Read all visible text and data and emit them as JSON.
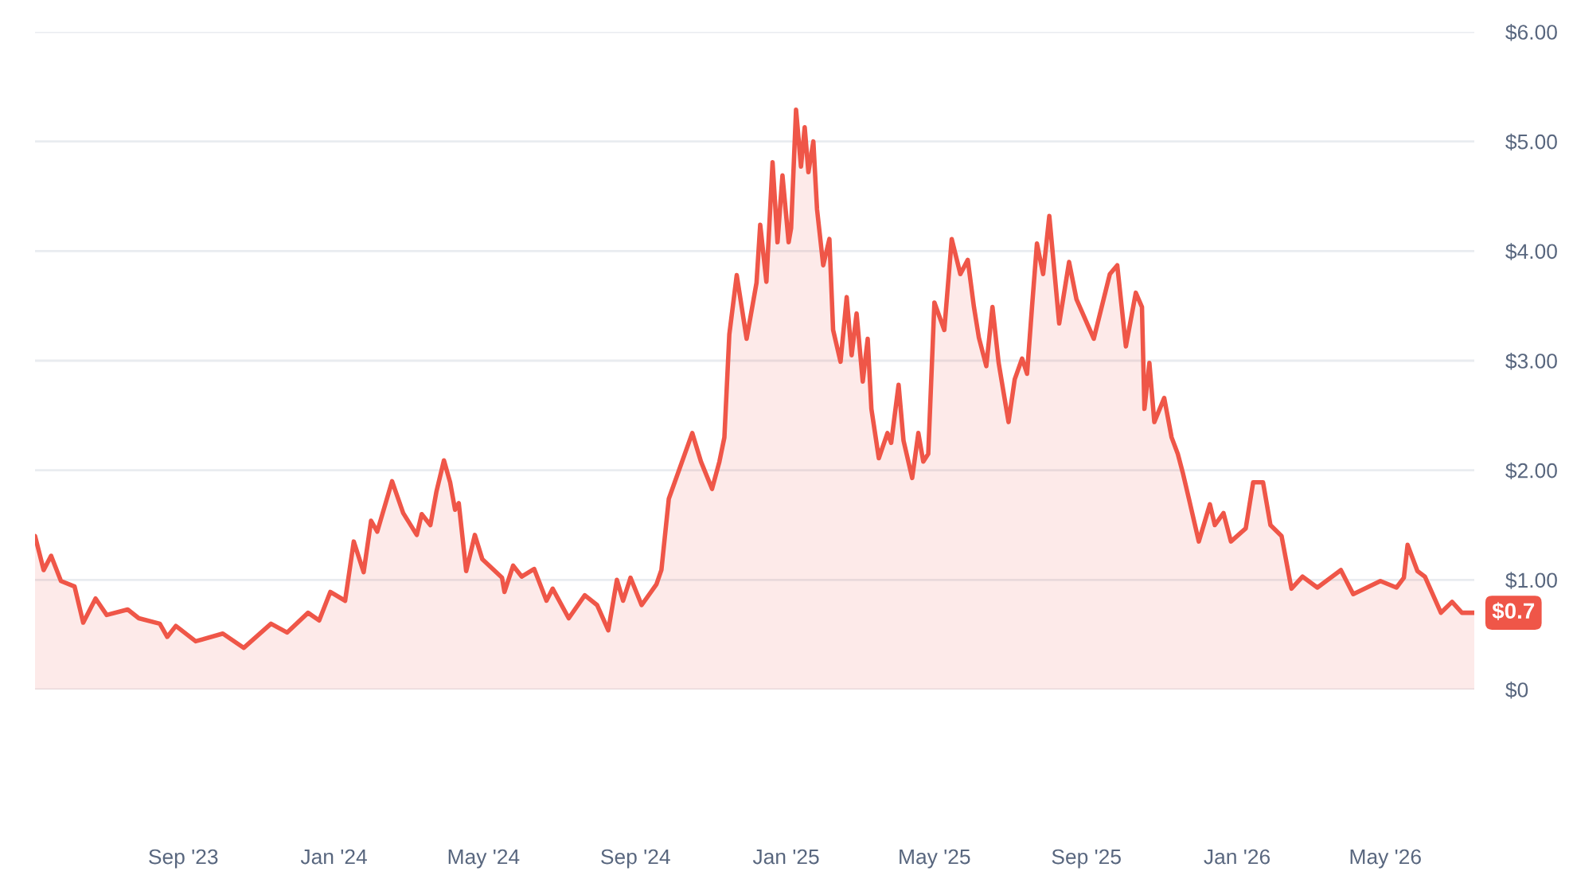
{
  "chart_data": {
    "type": "area",
    "x": [
      "2023-05-04",
      "2023-05-11",
      "2023-05-17",
      "2023-05-25",
      "2023-06-05",
      "2023-06-12",
      "2023-06-22",
      "2023-07-01",
      "2023-07-18",
      "2023-07-27",
      "2023-08-13",
      "2023-08-19",
      "2023-08-26",
      "2023-09-11",
      "2023-10-03",
      "2023-10-20",
      "2023-11-11",
      "2023-11-24",
      "2023-12-11",
      "2023-12-20",
      "2023-12-29",
      "2024-01-10",
      "2024-01-17",
      "2024-01-25",
      "2024-01-31",
      "2024-02-05",
      "2024-02-17",
      "2024-02-26",
      "2024-03-08",
      "2024-03-12",
      "2024-03-19",
      "2024-03-24",
      "2024-03-30",
      "2024-04-04",
      "2024-04-08",
      "2024-04-11",
      "2024-04-17",
      "2024-04-24",
      "2024-04-30",
      "2024-05-16",
      "2024-05-18",
      "2024-05-25",
      "2024-06-01",
      "2024-06-11",
      "2024-06-21",
      "2024-06-26",
      "2024-07-09",
      "2024-07-22",
      "2024-08-01",
      "2024-08-10",
      "2024-08-17",
      "2024-08-22",
      "2024-08-28",
      "2024-09-06",
      "2024-09-18",
      "2024-09-22",
      "2024-09-28",
      "2024-10-17",
      "2024-10-24",
      "2024-11-02",
      "2024-11-08",
      "2024-11-12",
      "2024-11-16",
      "2024-11-22",
      "2024-11-30",
      "2024-12-08",
      "2024-12-11",
      "2024-12-16",
      "2024-12-21",
      "2024-12-25",
      "2024-12-29",
      "2025-01-03",
      "2025-01-05",
      "2025-01-09",
      "2025-01-13",
      "2025-01-16",
      "2025-01-19",
      "2025-01-23",
      "2025-01-26",
      "2025-01-31",
      "2025-02-05",
      "2025-02-08",
      "2025-02-14",
      "2025-02-19",
      "2025-02-23",
      "2025-02-27",
      "2025-03-04",
      "2025-03-08",
      "2025-03-11",
      "2025-03-17",
      "2025-03-24",
      "2025-03-27",
      "2025-04-02",
      "2025-04-06",
      "2025-04-13",
      "2025-04-18",
      "2025-04-22",
      "2025-04-26",
      "2025-05-01",
      "2025-05-09",
      "2025-05-15",
      "2025-05-22",
      "2025-05-28",
      "2025-06-02",
      "2025-06-06",
      "2025-06-12",
      "2025-06-17",
      "2025-06-22",
      "2025-06-30",
      "2025-07-05",
      "2025-07-11",
      "2025-07-15",
      "2025-07-19",
      "2025-07-23",
      "2025-07-28",
      "2025-08-02",
      "2025-08-10",
      "2025-08-18",
      "2025-08-24",
      "2025-09-07",
      "2025-09-20",
      "2025-09-26",
      "2025-10-03",
      "2025-10-11",
      "2025-10-16",
      "2025-10-18",
      "2025-10-22",
      "2025-10-26",
      "2025-11-03",
      "2025-11-09",
      "2025-11-14",
      "2025-11-18",
      "2025-11-23",
      "2025-12-01",
      "2025-12-10",
      "2025-12-14",
      "2025-12-21",
      "2025-12-27",
      "2026-01-08",
      "2026-01-14",
      "2026-01-22",
      "2026-01-28",
      "2026-02-06",
      "2026-02-14",
      "2026-02-23",
      "2026-03-07",
      "2026-03-26",
      "2026-04-05",
      "2026-04-18",
      "2026-04-27",
      "2026-05-10",
      "2026-05-16",
      "2026-05-19",
      "2026-05-27",
      "2026-06-02",
      "2026-06-15",
      "2026-06-24",
      "2026-07-02",
      "2026-07-12"
    ],
    "series": [
      {
        "color": "#ef5648",
        "values": [
          1.4,
          1.09,
          1.22,
          0.99,
          0.94,
          0.61,
          0.83,
          0.68,
          0.73,
          0.65,
          0.6,
          0.48,
          0.58,
          0.44,
          0.51,
          0.38,
          0.6,
          0.52,
          0.7,
          0.63,
          0.89,
          0.81,
          1.35,
          1.07,
          1.54,
          1.44,
          1.9,
          1.61,
          1.41,
          1.6,
          1.5,
          1.81,
          2.09,
          1.89,
          1.64,
          1.7,
          1.08,
          1.41,
          1.19,
          1.02,
          0.89,
          1.13,
          1.03,
          1.1,
          0.81,
          0.92,
          0.65,
          0.86,
          0.77,
          0.54,
          1.0,
          0.81,
          1.02,
          0.77,
          0.96,
          1.09,
          1.74,
          2.34,
          2.08,
          1.83,
          2.08,
          2.3,
          3.24,
          3.78,
          3.2,
          3.71,
          4.24,
          3.72,
          4.81,
          4.08,
          4.69,
          4.08,
          4.21,
          5.29,
          4.77,
          5.13,
          4.72,
          5.0,
          4.38,
          3.87,
          4.11,
          3.28,
          2.99,
          3.58,
          3.05,
          3.43,
          2.81,
          3.2,
          2.56,
          2.11,
          2.34,
          2.25,
          2.78,
          2.27,
          1.93,
          2.34,
          2.08,
          2.15,
          3.53,
          3.28,
          4.11,
          3.79,
          3.92,
          3.49,
          3.21,
          2.95,
          3.49,
          2.98,
          2.44,
          2.83,
          3.02,
          2.88,
          3.49,
          4.07,
          3.79,
          4.32,
          3.34,
          3.9,
          3.56,
          3.2,
          3.79,
          3.87,
          3.13,
          3.62,
          3.49,
          2.56,
          2.98,
          2.44,
          2.66,
          2.3,
          2.15,
          1.98,
          1.74,
          1.35,
          1.69,
          1.5,
          1.61,
          1.35,
          1.47,
          1.89,
          1.89,
          1.5,
          1.4,
          0.92,
          1.03,
          0.93,
          1.09,
          0.87,
          0.94,
          0.99,
          0.93,
          1.02,
          1.32,
          1.08,
          1.03,
          0.7,
          0.8,
          0.7,
          0.7
        ],
        "value_labels": [
          null,
          null,
          null,
          null,
          null,
          null,
          null,
          null,
          null,
          null,
          null,
          null,
          null,
          null,
          null,
          null,
          null,
          null,
          null,
          null,
          null,
          null,
          null,
          null,
          null,
          null,
          null,
          null,
          null,
          null,
          null,
          null,
          null,
          null,
          null,
          null,
          null,
          null,
          null,
          null,
          null,
          null,
          null,
          null,
          null,
          null,
          null,
          null,
          null,
          null,
          null,
          null,
          null,
          null,
          null,
          null,
          null,
          null,
          null,
          null,
          null,
          null,
          null,
          null,
          null,
          null,
          null,
          null,
          null,
          null,
          null,
          null,
          null,
          null,
          null,
          null,
          null,
          null,
          null,
          null,
          null,
          null,
          null,
          null,
          null,
          null,
          null,
          null,
          null,
          null,
          null,
          null,
          null,
          null,
          null,
          null,
          null,
          null,
          null,
          null,
          null,
          null,
          null,
          null,
          null,
          null,
          null,
          null,
          null,
          null,
          null,
          null,
          null,
          null,
          null,
          null,
          null,
          null,
          null,
          null,
          null,
          null,
          null,
          null,
          null,
          null,
          null,
          null,
          null,
          null,
          null,
          null,
          null,
          null,
          null,
          null,
          null,
          null,
          null,
          null,
          null,
          null,
          null,
          null,
          null,
          null,
          null,
          null,
          null,
          null,
          null,
          null,
          null,
          null,
          null,
          null,
          null,
          null,
          "$0.7"
        ]
      }
    ],
    "xlim": [
      "2023-05-04",
      "2026-07-12"
    ],
    "xticks": [
      {
        "value": "2023-09-01",
        "label": "Sep '23"
      },
      {
        "value": "2024-01-01",
        "label": "Jan '24"
      },
      {
        "value": "2024-05-01",
        "label": "May '24"
      },
      {
        "value": "2024-09-01",
        "label": "Sep '24"
      },
      {
        "value": "2025-01-01",
        "label": "Jan '25"
      },
      {
        "value": "2025-05-01",
        "label": "May '25"
      },
      {
        "value": "2025-09-01",
        "label": "Sep '25"
      },
      {
        "value": "2026-01-01",
        "label": "Jan '26"
      },
      {
        "value": "2026-05-01",
        "label": "May '26"
      }
    ],
    "ylim": [
      0,
      6
    ],
    "yticks": [
      {
        "value": 0,
        "label": "$0"
      },
      {
        "value": 1,
        "label": "$1.00"
      },
      {
        "value": 2,
        "label": "$2.00"
      },
      {
        "value": 3,
        "label": "$3.00"
      },
      {
        "value": 4,
        "label": "$4.00"
      },
      {
        "value": 5,
        "label": "$5.00"
      },
      {
        "value": 6,
        "label": "$6.00"
      }
    ],
    "grid": "y",
    "legend": false,
    "marker": "none",
    "line_style": "solid"
  }
}
